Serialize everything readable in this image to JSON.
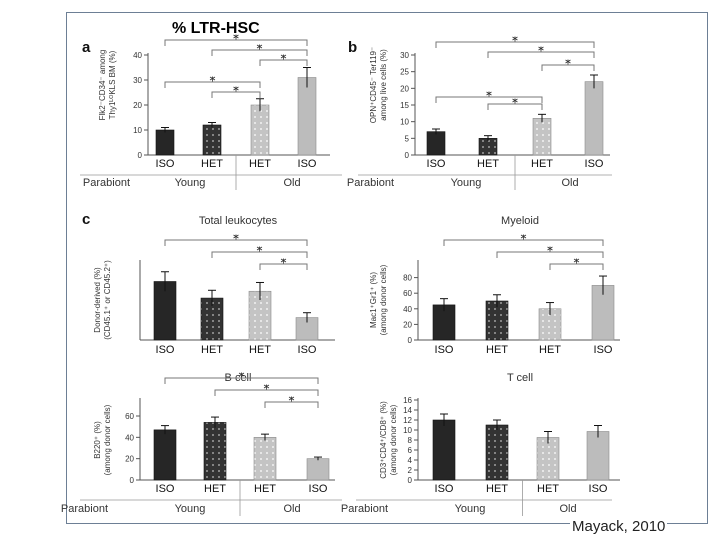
{
  "slide": {
    "title": "% LTR-HSC",
    "citation": "Mayack, 2010"
  },
  "colors": {
    "iso_young": "#262626",
    "het_young": "#333333",
    "het_old": "#c4c4c4",
    "iso_old": "#bcbcbc",
    "axis": "#555555"
  },
  "chart_data": [
    {
      "id": "a",
      "panel_letter": "a",
      "type": "bar",
      "title": "",
      "ylabel": [
        "Flk2⁻CD34⁻ among",
        "Thy1ᴸᴼKLS BM (%)"
      ],
      "ylim": [
        0,
        40
      ],
      "yticks": [
        "0",
        "10",
        "20",
        "30",
        "40"
      ],
      "categories": [
        "ISO",
        "HET",
        "HET",
        "ISO"
      ],
      "values": [
        10,
        12,
        20,
        31
      ],
      "errors": [
        1,
        1,
        2.5,
        4
      ],
      "groups": [
        "Young",
        "Old"
      ],
      "group_label": "Parabiont",
      "significance": [
        [
          0,
          3
        ],
        [
          1,
          3
        ],
        [
          2,
          3
        ],
        [
          0,
          2
        ],
        [
          1,
          2
        ]
      ]
    },
    {
      "id": "b",
      "panel_letter": "b",
      "type": "bar",
      "title": "",
      "ylabel": [
        "OPN⁺CD45⁻ Ter119⁻",
        "among live cells (%)"
      ],
      "ylim": [
        0,
        30
      ],
      "yticks": [
        "0",
        "5",
        "10",
        "15",
        "20",
        "25",
        "30"
      ],
      "categories": [
        "ISO",
        "HET",
        "HET",
        "ISO"
      ],
      "values": [
        7,
        5,
        11,
        22
      ],
      "errors": [
        0.8,
        0.8,
        1.2,
        2
      ],
      "groups": [
        "Young",
        "Old"
      ],
      "group_label": "Parabiont",
      "significance": [
        [
          0,
          3
        ],
        [
          1,
          3
        ],
        [
          2,
          3
        ],
        [
          0,
          2
        ],
        [
          1,
          2
        ]
      ]
    },
    {
      "id": "c1",
      "panel_letter": "c",
      "type": "bar",
      "title": "Total leukocytes",
      "ylabel": [
        "Donor-derived (%)",
        "(CD45.1⁺ or CD45.2⁺)"
      ],
      "ylim": [
        0,
        80
      ],
      "yticks": [],
      "categories": [
        "ISO",
        "HET",
        "HET",
        "ISO"
      ],
      "values": [
        60,
        43,
        50,
        23
      ],
      "errors": [
        10,
        8,
        9,
        5
      ],
      "groups": [],
      "group_label": "",
      "significance": [
        [
          0,
          3
        ],
        [
          1,
          3
        ],
        [
          2,
          3
        ]
      ]
    },
    {
      "id": "c2",
      "panel_letter": "",
      "type": "bar",
      "title": "Myeloid",
      "ylabel": [
        "Mac1⁺Gr1⁺ (%)",
        "(among donor cells)"
      ],
      "ylim": [
        0,
        100
      ],
      "yticks": [
        "0",
        "20",
        "40",
        "60",
        "80"
      ],
      "categories": [
        "ISO",
        "HET",
        "HET",
        "ISO"
      ],
      "values": [
        45,
        50,
        40,
        70
      ],
      "errors": [
        8,
        8,
        8,
        12
      ],
      "groups": [],
      "group_label": "",
      "significance": [
        [
          0,
          3
        ],
        [
          1,
          3
        ],
        [
          2,
          3
        ]
      ]
    },
    {
      "id": "c3",
      "panel_letter": "",
      "type": "bar",
      "title": "B cell",
      "ylabel": [
        "B220⁺ (%)",
        "(among donor cells)"
      ],
      "ylim": [
        0,
        75
      ],
      "yticks": [
        "0",
        "20",
        "40",
        "60"
      ],
      "categories": [
        "ISO",
        "HET",
        "HET",
        "ISO"
      ],
      "values": [
        47,
        54,
        40,
        20
      ],
      "errors": [
        4,
        5,
        3,
        1.5
      ],
      "groups": [
        "Young",
        "Old"
      ],
      "group_label": "Parabiont",
      "significance": [
        [
          0,
          3
        ],
        [
          1,
          3
        ],
        [
          2,
          3
        ]
      ]
    },
    {
      "id": "c4",
      "panel_letter": "",
      "type": "bar",
      "title": "T cell",
      "ylabel": [
        "CD3⁺CD4⁺/CD8⁺ (%)",
        "(among donor cells)"
      ],
      "ylim": [
        0,
        16
      ],
      "yticks": [
        "0",
        "2",
        "4",
        "6",
        "8",
        "10",
        "12",
        "14",
        "16"
      ],
      "categories": [
        "ISO",
        "HET",
        "HET",
        "ISO"
      ],
      "values": [
        12,
        11,
        8.5,
        9.7
      ],
      "errors": [
        1.2,
        1,
        1.2,
        1.2
      ],
      "groups": [
        "Young",
        "Old"
      ],
      "group_label": "Parabiont",
      "significance": []
    }
  ]
}
